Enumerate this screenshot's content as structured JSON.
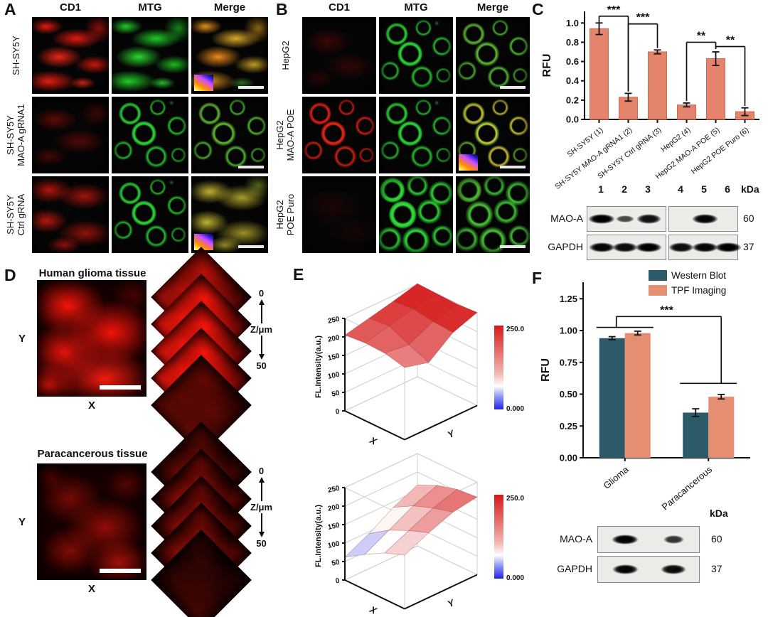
{
  "panelA": {
    "letter": "A",
    "columns": [
      "CD1",
      "MTG",
      "Merge"
    ],
    "rows": [
      {
        "label_lines": [
          "SH-SY5Y"
        ]
      },
      {
        "label_lines": [
          "SH-SY5Y",
          "MAO-A gRNA1"
        ]
      },
      {
        "label_lines": [
          "SH-SY5Y",
          "Ctrl gRNA"
        ]
      }
    ],
    "cells": [
      [
        {
          "look": "red-bright"
        },
        {
          "look": "green-net"
        },
        {
          "look": "merge-orange",
          "lut": true,
          "scalebar": true
        }
      ],
      [
        {
          "look": "red-dim"
        },
        {
          "look": "green-cells"
        },
        {
          "look": "merge-green",
          "scalebar": true
        }
      ],
      [
        {
          "look": "red-mid"
        },
        {
          "look": "green-cells"
        },
        {
          "look": "merge-yellow",
          "lut": true,
          "scalebar": true
        }
      ]
    ]
  },
  "panelB": {
    "letter": "B",
    "columns": [
      "CD1",
      "MTG",
      "Merge"
    ],
    "rows": [
      {
        "label_lines": [
          "HepG2"
        ]
      },
      {
        "label_lines": [
          "HepG2",
          "MAO-A POE"
        ]
      },
      {
        "label_lines": [
          "HepG2",
          "POE Puro"
        ]
      }
    ],
    "cells": [
      [
        {
          "look": "red-faint"
        },
        {
          "look": "green-cells"
        },
        {
          "look": "merge-green",
          "scalebar": true
        }
      ],
      [
        {
          "look": "red-rings"
        },
        {
          "look": "green-cells"
        },
        {
          "look": "merge-yellowgreen",
          "lut": true,
          "scalebar": true
        }
      ],
      [
        {
          "look": "red-black"
        },
        {
          "look": "green-dense"
        },
        {
          "look": "merge-green2",
          "scalebar": true
        }
      ]
    ]
  },
  "panelC": {
    "letter": "C",
    "blot": {
      "lane_labels": [
        "1",
        "2",
        "3",
        "4",
        "5",
        "6"
      ],
      "unit": "kDa",
      "rows": [
        {
          "label": "MAO-A",
          "kda": "60",
          "bands": [
            [
              1,
              0.4,
              0.85
            ],
            [
              0,
              0.95,
              0
            ]
          ]
        },
        {
          "label": "GAPDH",
          "kda": "37",
          "bands": [
            [
              0.95,
              0.9,
              1
            ],
            [
              0.9,
              0.95,
              1
            ]
          ]
        }
      ]
    }
  },
  "panelD": {
    "letter": "D",
    "sections": [
      {
        "title": "Human glioma tissue",
        "xlabel": "X",
        "ylabel": "Y",
        "z_top": "0",
        "z_label": "Z/μm",
        "z_bottom": "50",
        "look": "tissue-red"
      },
      {
        "title": "Paracancerous tissue",
        "xlabel": "X",
        "ylabel": "Y",
        "z_top": "0",
        "z_label": "Z/μm",
        "z_bottom": "50",
        "look": "tissue-red-dim"
      }
    ]
  },
  "panelE": {
    "letter": "E"
  },
  "panelF": {
    "letter": "F",
    "blot": {
      "unit": "kDa",
      "rows": [
        {
          "label": "MAO-A",
          "kda": "60",
          "bands": [
            1,
            0.55
          ]
        },
        {
          "label": "GAPDH",
          "kda": "37",
          "bands": [
            0.95,
            0.9
          ]
        }
      ]
    }
  },
  "chart_data": [
    {
      "id": "C",
      "type": "bar",
      "title": "",
      "ylabel": "RFU",
      "categories": [
        "SH-SY5Y (1)",
        "SH-SY5Y MAO-A gRNA1 (2)",
        "SH-SY5Y Ctrl gRNA (3)",
        "HepG2 (4)",
        "HepG2 MAO-A POE (5)",
        "HepG2 POE Puro (6)"
      ],
      "values": [
        0.94,
        0.23,
        0.7,
        0.15,
        0.63,
        0.08
      ],
      "errors": [
        0.06,
        0.04,
        0.02,
        0.02,
        0.07,
        0.04
      ],
      "ylim": [
        0,
        1.12
      ],
      "ytick_labels": [
        "0.0",
        "0.2",
        "0.4",
        "0.6",
        "0.8",
        "1.0"
      ],
      "bar_color": "#E5846C",
      "bar_stroke": "#C96951",
      "grid": false,
      "significance": [
        {
          "x1": 0,
          "x2": 1,
          "y": 1.07,
          "yl": 1.005,
          "yr": 0.29,
          "label": "***"
        },
        {
          "x1": 1,
          "x2": 2,
          "y": 0.99,
          "yl": 0.29,
          "yr": 0.74,
          "label": "***"
        },
        {
          "x1": 3,
          "x2": 4,
          "y": 0.8,
          "yl": 0.19,
          "yr": 0.73,
          "label": "**"
        },
        {
          "x1": 4,
          "x2": 5,
          "y": 0.755,
          "yl": 0.73,
          "yr": 0.14,
          "label": "**"
        }
      ]
    },
    {
      "id": "E-top",
      "type": "surface",
      "zlabel": "FL.Intensity(a.u.)",
      "xlabel": "X",
      "ylabel": "Y",
      "zlim": [
        0,
        250
      ],
      "ztick_labels": [
        "0",
        "50",
        "100",
        "150",
        "200",
        "250"
      ],
      "colorbar": {
        "max": "250.0",
        "min": "0.000"
      },
      "values": [
        [
          205,
          220,
          235,
          252
        ],
        [
          210,
          225,
          240,
          250
        ],
        [
          208,
          200,
          232,
          248
        ],
        [
          195,
          178,
          228,
          252
        ]
      ]
    },
    {
      "id": "E-bottom",
      "type": "surface",
      "zlabel": "FL.Intensity(a.u.)",
      "xlabel": "X",
      "ylabel": "Y",
      "zlim": [
        0,
        250
      ],
      "ztick_labels": [
        "0",
        "50",
        "100",
        "150",
        "200",
        "250"
      ],
      "colorbar": {
        "max": "250.0",
        "min": "0.000"
      },
      "values": [
        [
          62,
          95,
          135,
          165
        ],
        [
          95,
          130,
          165,
          190
        ],
        [
          125,
          155,
          185,
          205
        ],
        [
          145,
          175,
          200,
          210
        ]
      ]
    },
    {
      "id": "F",
      "type": "grouped_bar",
      "ylabel": "RFU",
      "categories": [
        "Glioma",
        "Paracancerous"
      ],
      "series": [
        {
          "name": "Western Blot",
          "color": "#2C5A68",
          "values": [
            0.94,
            0.355
          ],
          "errors": [
            0.012,
            0.03
          ]
        },
        {
          "name": "TPF Imaging",
          "color": "#E68E72",
          "values": [
            0.98,
            0.48
          ],
          "errors": [
            0.015,
            0.018
          ]
        }
      ],
      "ylim": [
        0,
        1.38
      ],
      "ytick_labels": [
        "0.00",
        "0.25",
        "0.50",
        "0.75",
        "1.00",
        "1.25"
      ],
      "legend_position": "top-right",
      "grid": false,
      "significance": {
        "label": "***",
        "y_main": 1.11,
        "y_cap_left": 1.025,
        "y_cap_right": 0.585
      }
    }
  ]
}
